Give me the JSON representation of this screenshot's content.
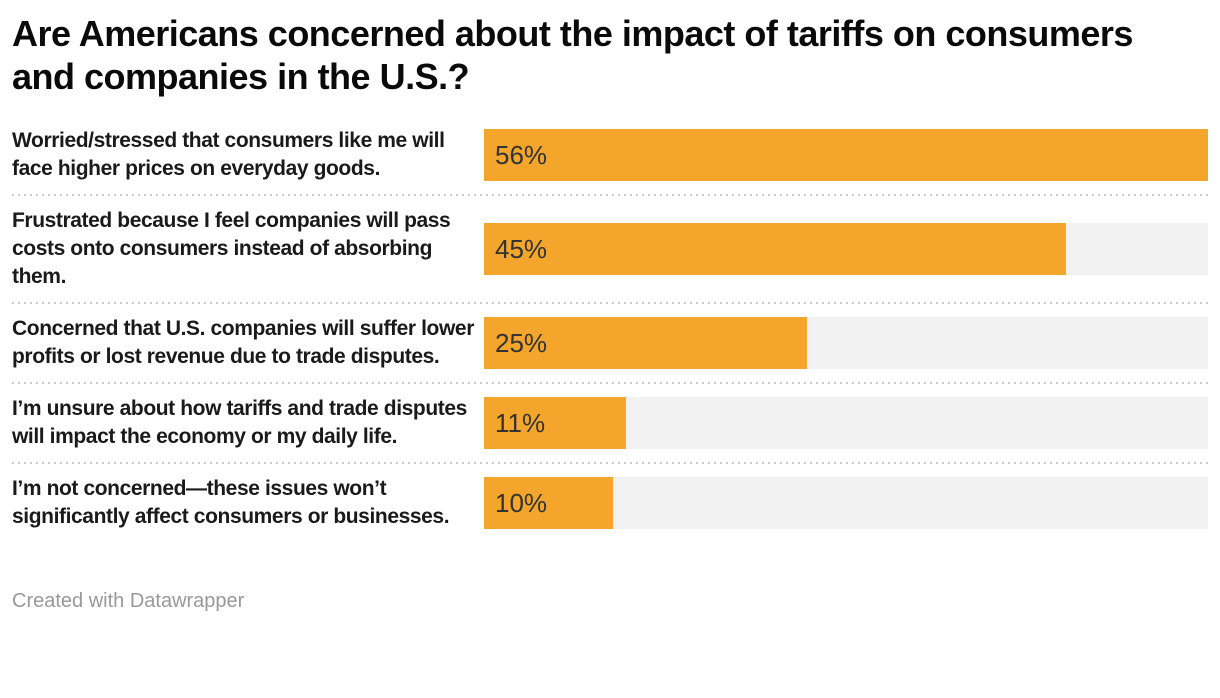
{
  "title": "Are Americans concerned about the impact of tariffs on consumers and companies in the U.S.?",
  "footer": {
    "text": "Created with Datawrapper"
  },
  "colors": {
    "bar": "#f3a52c",
    "track": "#f2f2f2",
    "separator": "#cccccc",
    "value_text": "#333333",
    "label_text": "#1a1a1a",
    "footer_text": "#999999"
  },
  "chart_data": {
    "type": "bar",
    "orientation": "horizontal",
    "title": "Are Americans concerned about the impact of tariffs on consumers and companies in the U.S.?",
    "categories": [
      "Worried/stressed that consumers like me will face higher prices on everyday goods.",
      "Frustrated because I feel companies will pass costs onto consumers instead of absorbing them.",
      "Concerned that U.S. companies will suffer lower profits or lost revenue due to trade disputes.",
      "I’m unsure about how tariffs and trade disputes will impact the economy or my daily life.",
      "I’m not concerned—these issues won’t significantly affect consumers or businesses."
    ],
    "values": [
      56,
      45,
      25,
      11,
      10
    ],
    "value_labels": [
      "56%",
      "45%",
      "25%",
      "11%",
      "10%"
    ],
    "unit": "%",
    "xlim": [
      0,
      56
    ],
    "max_value": 56,
    "bar_color": "#f3a52c",
    "track_color": "#f2f2f2",
    "grid": false,
    "legend": null,
    "attribution": "Created with Datawrapper"
  }
}
